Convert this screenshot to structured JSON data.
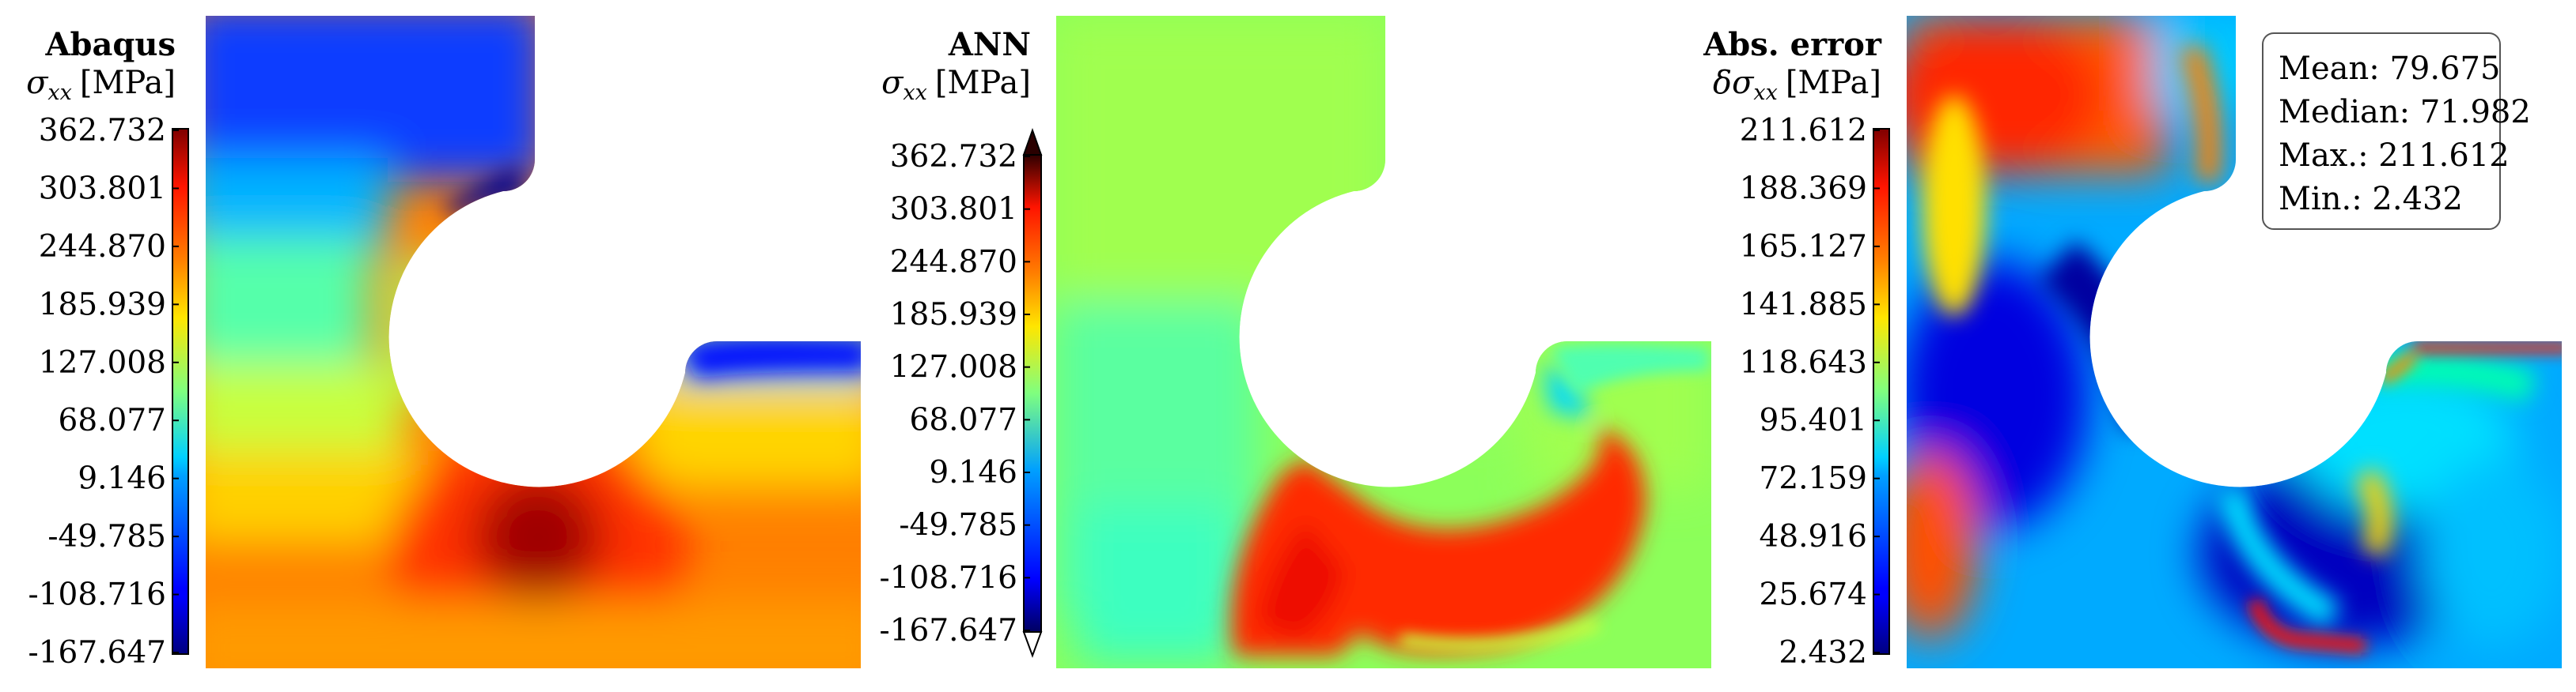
{
  "panels": [
    {
      "title": "Abaqus",
      "quantity": {
        "symbol": "σ",
        "subscript": "xx",
        "unit": "[MPa]",
        "prefix": ""
      },
      "colorbar": {
        "ticks": [
          "362.732",
          "303.801",
          "244.870",
          "185.939",
          "127.008",
          "68.077",
          "9.146",
          "-49.785",
          "-108.716",
          "-167.647"
        ],
        "extend_arrows": false
      }
    },
    {
      "title": "ANN",
      "quantity": {
        "symbol": "σ",
        "subscript": "xx",
        "unit": "[MPa]",
        "prefix": ""
      },
      "colorbar": {
        "ticks": [
          "362.732",
          "303.801",
          "244.870",
          "185.939",
          "127.008",
          "68.077",
          "9.146",
          "-49.785",
          "-108.716",
          "-167.647"
        ],
        "extend_arrows": true
      }
    },
    {
      "title": "Abs. error",
      "quantity": {
        "symbol": "σ",
        "subscript": "xx",
        "unit": "[MPa]",
        "prefix": "δ"
      },
      "colorbar": {
        "ticks": [
          "211.612",
          "188.369",
          "165.127",
          "141.885",
          "118.643",
          "95.401",
          "72.159",
          "48.916",
          "25.674",
          "2.432"
        ],
        "extend_arrows": false
      },
      "stats": [
        {
          "label": "Mean:",
          "value": "79.675"
        },
        {
          "label": "Median:",
          "value": "71.982"
        },
        {
          "label": "Max.:",
          "value": "211.612"
        },
        {
          "label": "Min.:",
          "value": "2.432"
        }
      ]
    }
  ],
  "chart_data": [
    {
      "type": "heatmap",
      "title": "Abaqus",
      "value_label": "σxx [MPa]",
      "colormap": "jet",
      "vmin": -167.647,
      "vmax": 362.732
    },
    {
      "type": "heatmap",
      "title": "ANN",
      "value_label": "σxx [MPa]",
      "colormap": "jet",
      "vmin": -167.647,
      "vmax": 362.732
    },
    {
      "type": "heatmap",
      "title": "Abs. error",
      "value_label": "δσxx [MPa]",
      "colormap": "jet",
      "vmin": 2.432,
      "vmax": 211.612,
      "stats": {
        "mean": 79.675,
        "median": 71.982,
        "max": 211.612,
        "min": 2.432
      }
    }
  ]
}
